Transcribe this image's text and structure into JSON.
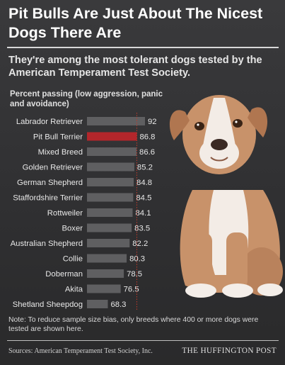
{
  "title": "Pit Bulls Are Just About The Nicest Dogs There Are",
  "subtitle": "They're among the most tolerant dogs tested by the American Temperament Test Society.",
  "note": "Note: To reduce sample size bias, only breeds where 400 or more dogs were tested are shown here.",
  "source": "Sources: American Temperament Test Society, Inc.",
  "brand": "THE HUFFINGTON POST",
  "colors": {
    "bar": "#5f5f61",
    "highlight": "#b3262b",
    "background": "#2f2f31",
    "refline": "#c0392b"
  },
  "chart_data": {
    "type": "bar",
    "orientation": "horizontal",
    "ylabel": "Percent passing (low aggression, panic and avoidance)",
    "categories": [
      "Labrador Retriever",
      "Pit Bull Terrier",
      "Mixed Breed",
      "Golden Retriever",
      "German Shepherd",
      "Staffordshire Terrier",
      "Rottweiler",
      "Boxer",
      "Australian Shepherd",
      "Collie",
      "Doberman",
      "Akita",
      "Shetland Sheepdog"
    ],
    "values": [
      92,
      86.8,
      86.6,
      85.2,
      84.8,
      84.5,
      84.1,
      83.5,
      82.2,
      80.3,
      78.5,
      76.5,
      68.3
    ],
    "value_labels": [
      "92",
      "86.8",
      "86.6",
      "85.2",
      "84.8",
      "84.5",
      "84.1",
      "83.5",
      "82.2",
      "80.3",
      "78.5",
      "76.5",
      "68.3"
    ],
    "highlight": "Pit Bull Terrier",
    "reference_line": 86.8,
    "xlim": [
      55,
      92
    ]
  }
}
